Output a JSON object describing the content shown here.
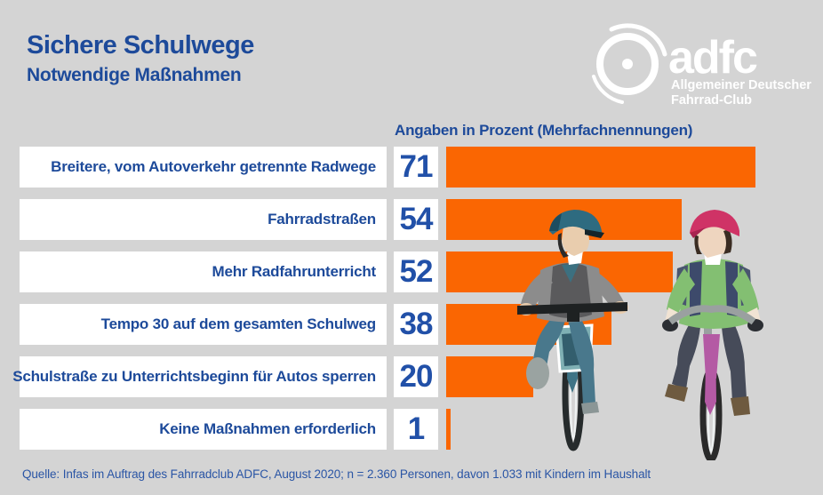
{
  "header": {
    "title": "Sichere Schulwege",
    "subtitle": "Notwendige Maßnahmen"
  },
  "logo": {
    "icon": "adfc-wheel-icon",
    "wordmark": "adfc",
    "line1": "Allgemeiner Deutscher",
    "line2": "Fahrrad-Club"
  },
  "chart_data": {
    "type": "bar",
    "orientation": "horizontal",
    "title": "Sichere Schulwege – Notwendige Maßnahmen",
    "value_header": "Angaben in Prozent (Mehrfachnennungen)",
    "unit": "percent",
    "categories": [
      "Breitere, vom Autoverkehr getrennte Radwege",
      "Fahrradstraßen",
      "Mehr Radfahrunterricht",
      "Tempo 30 auf dem gesamten Schulweg",
      "Schulstraße zu Unterrichtsbeginn für Autos sperren",
      "Keine Maßnahmen erforderlich"
    ],
    "values": [
      71,
      54,
      52,
      38,
      20,
      1
    ],
    "rows": [
      {
        "label": "Breitere, vom Autoverkehr getrennte Radwege",
        "value": "71"
      },
      {
        "label": "Fahrradstraßen",
        "value": "54"
      },
      {
        "label": "Mehr Radfahrunterricht",
        "value": "52"
      },
      {
        "label": "Tempo 30 auf dem gesamten Schulweg",
        "value": "38"
      },
      {
        "label": "Schulstraße zu Unterrichtsbeginn für Autos sperren",
        "value": "20"
      },
      {
        "label": "Keine Maßnahmen erforderlich",
        "value": "1"
      }
    ],
    "bar_color": "#FA6602",
    "grid": false,
    "legend": false
  },
  "footer": {
    "source": "Quelle: Infas im Auftrag des Fahrradclub ADFC, August 2020; n = 2.360 Personen, davon 1.033 mit Kindern im Haushalt"
  },
  "colors": {
    "accent_orange": "#FA6602",
    "brand_blue": "#1D4A9A",
    "background": "#D4D4D4",
    "box_white": "#FFFFFF",
    "logo_white": "#FFFFFF"
  }
}
